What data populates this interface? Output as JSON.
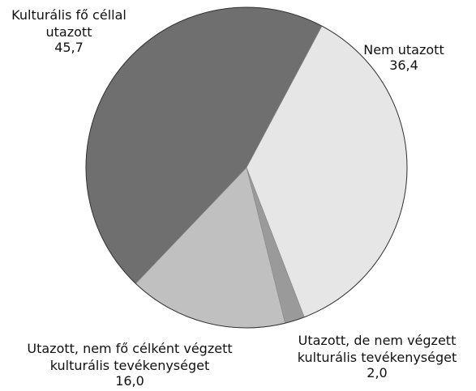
{
  "chart_data": {
    "type": "pie",
    "categories": [
      "Nem utazott",
      "Utazott, de nem végzett kulturális tevékenységet",
      "Utazott, nem fő célként végzett kulturális tevékenységet",
      "Kulturális fő céllal utazott"
    ],
    "values": [
      36.4,
      2.0,
      16.0,
      45.7
    ],
    "value_labels": [
      "36,4",
      "2,0",
      "16,0",
      "45,7"
    ],
    "colors": [
      "#e6e6e6",
      "#9a9a9a",
      "#c0c0c0",
      "#6f6f6f"
    ]
  }
}
